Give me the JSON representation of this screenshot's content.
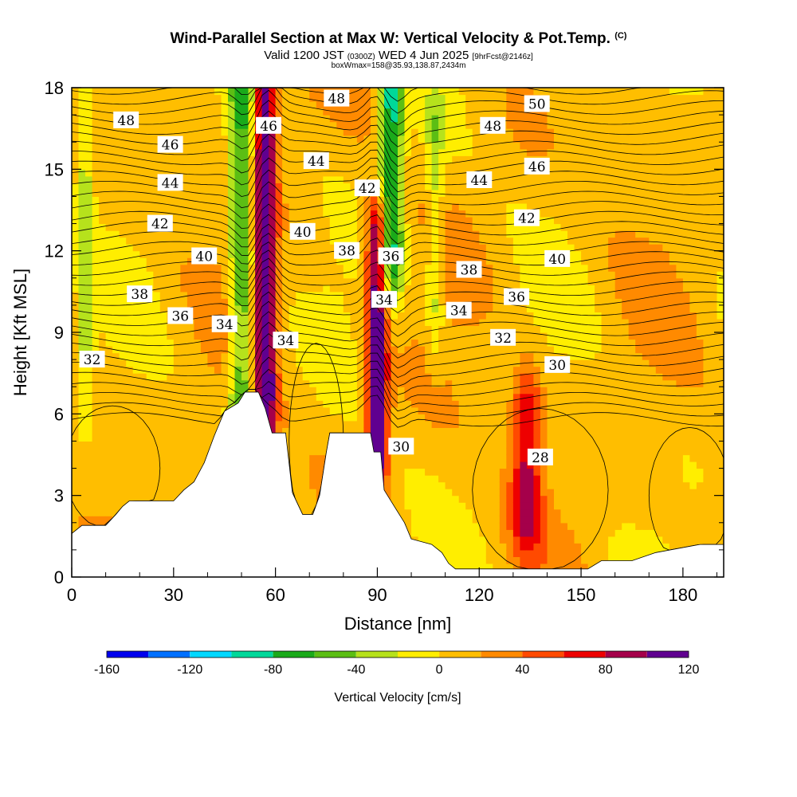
{
  "title": {
    "main": "Wind-Parallel Section at Max W: Vertical Velocity & Pot.Temp.",
    "copyright": "(C)",
    "valid_prefix": "Valid 1200 JST",
    "valid_utc": "(0300Z)",
    "valid_date": "WED 4 Jun 2025",
    "forecast": "[9hrFcst@2146z]",
    "box_info": "boxWmax=158@35.93,138.87,2434m"
  },
  "chart_data": {
    "type": "heatmap",
    "xlabel": "Distance [nm]",
    "ylabel": "Height [Kft MSL]",
    "xlim": [
      0,
      192
    ],
    "ylim": [
      0,
      18
    ],
    "x_ticks": [
      0,
      30,
      60,
      90,
      120,
      150,
      180
    ],
    "y_ticks": [
      0,
      3,
      6,
      9,
      12,
      15,
      18
    ],
    "field": "Vertical Velocity",
    "overlay": "Potential temperature isentropes",
    "terrain_kft": [
      [
        0,
        1.6
      ],
      [
        3,
        1.9
      ],
      [
        10,
        1.9
      ],
      [
        13,
        2.3
      ],
      [
        15,
        2.6
      ],
      [
        17,
        2.8
      ],
      [
        20,
        2.8
      ],
      [
        30,
        2.8
      ],
      [
        33,
        3.2
      ],
      [
        36,
        3.5
      ],
      [
        39,
        4.2
      ],
      [
        42,
        5.2
      ],
      [
        45,
        6.1
      ],
      [
        49,
        6.4
      ],
      [
        51,
        6.8
      ],
      [
        55,
        6.8
      ],
      [
        57,
        6.2
      ],
      [
        59,
        5.3
      ],
      [
        63,
        5.3
      ],
      [
        65,
        3.1
      ],
      [
        68,
        2.3
      ],
      [
        71,
        2.3
      ],
      [
        73,
        3.0
      ],
      [
        75,
        4.6
      ],
      [
        76,
        5.3
      ],
      [
        88,
        5.3
      ],
      [
        89,
        4.6
      ],
      [
        91,
        4.6
      ],
      [
        92,
        3.2
      ],
      [
        95,
        2.6
      ],
      [
        98,
        2.0
      ],
      [
        100,
        1.4
      ],
      [
        106,
        1.2
      ],
      [
        109,
        0.9
      ],
      [
        111,
        0.5
      ],
      [
        113,
        0.3
      ],
      [
        118,
        0.3
      ],
      [
        126,
        0.3
      ],
      [
        141,
        0.3
      ],
      [
        152,
        0.3
      ],
      [
        156,
        0.6
      ],
      [
        165,
        0.6
      ],
      [
        172,
        0.9
      ],
      [
        185,
        1.2
      ],
      [
        192,
        1.2
      ]
    ],
    "updrafts": [
      {
        "x": 57,
        "ytop": 18,
        "ybot": 6.0,
        "peak": 120
      },
      {
        "x": 90,
        "ytop": 12.5,
        "ybot": 4.6,
        "peak": 120
      },
      {
        "x": 134,
        "ytop": 6.0,
        "ybot": 2.5,
        "peak": 75
      }
    ],
    "downdrafts": [
      {
        "x": 50,
        "ytop": 18,
        "ybot": 6.8,
        "peak": -75
      },
      {
        "x": 94,
        "ytop": 18,
        "ybot": 12,
        "peak": -100
      },
      {
        "x": 4,
        "ytop": 16,
        "ybot": 8.5,
        "peak": -40
      },
      {
        "x": 107,
        "ytop": 16,
        "ybot": 10,
        "peak": -40
      }
    ],
    "contour_labels": [
      {
        "text": "48",
        "x": 16,
        "y": 16.8
      },
      {
        "text": "46",
        "x": 29,
        "y": 15.9
      },
      {
        "text": "44",
        "x": 29,
        "y": 14.5
      },
      {
        "text": "42",
        "x": 26,
        "y": 13.0
      },
      {
        "text": "40",
        "x": 39,
        "y": 11.8
      },
      {
        "text": "38",
        "x": 20,
        "y": 10.4
      },
      {
        "text": "36",
        "x": 32,
        "y": 9.6
      },
      {
        "text": "34",
        "x": 45,
        "y": 9.3
      },
      {
        "text": "32",
        "x": 6,
        "y": 8.0
      },
      {
        "text": "46",
        "x": 58,
        "y": 16.6
      },
      {
        "text": "48",
        "x": 78,
        "y": 17.6
      },
      {
        "text": "44",
        "x": 72,
        "y": 15.3
      },
      {
        "text": "40",
        "x": 68,
        "y": 12.7
      },
      {
        "text": "38",
        "x": 81,
        "y": 12.0
      },
      {
        "text": "42",
        "x": 87,
        "y": 14.3
      },
      {
        "text": "36",
        "x": 94,
        "y": 11.8
      },
      {
        "text": "34",
        "x": 92,
        "y": 10.2
      },
      {
        "text": "34",
        "x": 63,
        "y": 8.7
      },
      {
        "text": "30",
        "x": 97,
        "y": 4.8
      },
      {
        "text": "50",
        "x": 137,
        "y": 17.4
      },
      {
        "text": "48",
        "x": 124,
        "y": 16.6
      },
      {
        "text": "46",
        "x": 137,
        "y": 15.1
      },
      {
        "text": "44",
        "x": 120,
        "y": 14.6
      },
      {
        "text": "42",
        "x": 134,
        "y": 13.2
      },
      {
        "text": "40",
        "x": 143,
        "y": 11.7
      },
      {
        "text": "38",
        "x": 117,
        "y": 11.3
      },
      {
        "text": "36",
        "x": 131,
        "y": 10.3
      },
      {
        "text": "34",
        "x": 114,
        "y": 9.8
      },
      {
        "text": "32",
        "x": 127,
        "y": 8.8
      },
      {
        "text": "30",
        "x": 143,
        "y": 7.8
      },
      {
        "text": "28",
        "x": 138,
        "y": 4.4
      }
    ],
    "colorbar": {
      "label": "Vertical Velocity [cm/s]",
      "bounds": [
        -160,
        120
      ],
      "tick_labels": [
        "-160",
        "-120",
        "-80",
        "-40",
        "0",
        "40",
        "80",
        "120"
      ],
      "tick_values": [
        -160,
        -120,
        -80,
        -40,
        0,
        40,
        80,
        120
      ],
      "colors": [
        "#0000ee",
        "#0070ff",
        "#00d8ff",
        "#00d89a",
        "#1aaa1a",
        "#5cbe14",
        "#b6e21c",
        "#ffee00",
        "#ffbe00",
        "#ff8a00",
        "#ff4a00",
        "#ee0000",
        "#a5004a",
        "#600090"
      ]
    }
  }
}
